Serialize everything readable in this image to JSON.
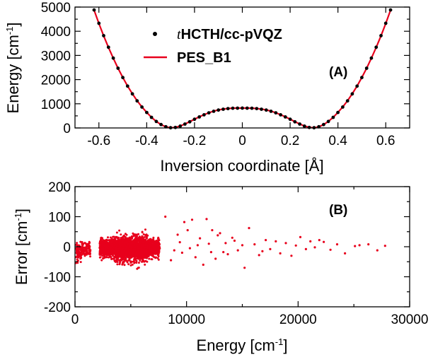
{
  "chart_data": [
    {
      "panel": "A",
      "type": "line",
      "panel_label": "(A)",
      "xlabel": "Inversion coordinate [Å]",
      "ylabel_main": "Energy [cm",
      "ylabel_sup": "-1",
      "ylabel_tail": "]",
      "xlim": [
        -0.7,
        0.7
      ],
      "ylim": [
        0,
        5000
      ],
      "xticks": [
        -0.6,
        -0.4,
        -0.2,
        0,
        0.2,
        0.4,
        0.6
      ],
      "xtick_labels": [
        "-0.6",
        "-0.4",
        "-0.2",
        "0",
        "0.2",
        "0.4",
        "0.6"
      ],
      "yticks": [
        0,
        500,
        1000,
        1500,
        2000,
        2500,
        3000,
        3500,
        4000,
        4500,
        5000
      ],
      "ytick_labels": [
        "0",
        "",
        "1000",
        "",
        "2000",
        "",
        "3000",
        "",
        "4000",
        "",
        "5000"
      ],
      "legend": [
        {
          "label_italic": "t",
          "label_rest": "HCTH/cc-pVQZ",
          "marker": "dot",
          "color": "#000000"
        },
        {
          "label_italic": "",
          "label_rest": "PES_B1",
          "marker": "line",
          "color": "#e8001c"
        }
      ],
      "series": [
        {
          "name": "tHCTH/cc-pVQZ",
          "style": "points",
          "color": "#000000",
          "x": [
            -0.62,
            -0.6,
            -0.58,
            -0.56,
            -0.54,
            -0.52,
            -0.5,
            -0.48,
            -0.46,
            -0.44,
            -0.42,
            -0.4,
            -0.38,
            -0.36,
            -0.34,
            -0.32,
            -0.3,
            -0.28,
            -0.26,
            -0.24,
            -0.22,
            -0.2,
            -0.18,
            -0.16,
            -0.14,
            -0.12,
            -0.1,
            -0.08,
            -0.06,
            -0.04,
            -0.02,
            0,
            0.02,
            0.04,
            0.06,
            0.08,
            0.1,
            0.12,
            0.14,
            0.16,
            0.18,
            0.2,
            0.22,
            0.24,
            0.26,
            0.28,
            0.3,
            0.32,
            0.34,
            0.36,
            0.38,
            0.4,
            0.42,
            0.44,
            0.46,
            0.48,
            0.5,
            0.52,
            0.54,
            0.56,
            0.58,
            0.6,
            0.62
          ],
          "y": [
            4880,
            4330,
            3820,
            3340,
            2890,
            2470,
            2085,
            1730,
            1410,
            1120,
            865,
            640,
            440,
            270,
            140,
            50,
            10,
            20,
            75,
            160,
            255,
            360,
            455,
            545,
            625,
            690,
            740,
            775,
            800,
            815,
            820,
            822,
            820,
            815,
            800,
            775,
            740,
            690,
            625,
            545,
            455,
            360,
            255,
            160,
            75,
            20,
            10,
            50,
            140,
            270,
            440,
            640,
            865,
            1120,
            1410,
            1730,
            2085,
            2470,
            2890,
            3340,
            3820,
            4330,
            4880
          ]
        },
        {
          "name": "PES_B1",
          "style": "line",
          "color": "#e8001c",
          "x": [
            -0.62,
            -0.6,
            -0.58,
            -0.56,
            -0.54,
            -0.52,
            -0.5,
            -0.48,
            -0.46,
            -0.44,
            -0.42,
            -0.4,
            -0.38,
            -0.36,
            -0.34,
            -0.32,
            -0.3,
            -0.28,
            -0.26,
            -0.24,
            -0.22,
            -0.2,
            -0.18,
            -0.16,
            -0.14,
            -0.12,
            -0.1,
            -0.08,
            -0.06,
            -0.04,
            -0.02,
            0,
            0.02,
            0.04,
            0.06,
            0.08,
            0.1,
            0.12,
            0.14,
            0.16,
            0.18,
            0.2,
            0.22,
            0.24,
            0.26,
            0.28,
            0.3,
            0.32,
            0.34,
            0.36,
            0.38,
            0.4,
            0.42,
            0.44,
            0.46,
            0.48,
            0.5,
            0.52,
            0.54,
            0.56,
            0.58,
            0.6,
            0.62
          ],
          "y": [
            4870,
            4320,
            3810,
            3330,
            2885,
            2470,
            2088,
            1735,
            1415,
            1125,
            868,
            642,
            440,
            268,
            136,
            47,
            8,
            22,
            78,
            164,
            260,
            364,
            460,
            550,
            630,
            695,
            745,
            780,
            805,
            818,
            822,
            824,
            822,
            818,
            805,
            780,
            745,
            695,
            630,
            550,
            460,
            364,
            260,
            164,
            78,
            22,
            8,
            47,
            136,
            268,
            440,
            642,
            868,
            1125,
            1415,
            1735,
            2088,
            2470,
            2885,
            3330,
            3810,
            4320,
            4870
          ]
        }
      ]
    },
    {
      "panel": "B",
      "type": "scatter",
      "panel_label": "(B)",
      "xlabel_main": "Energy [cm",
      "xlabel_sup": "-1",
      "xlabel_tail": "]",
      "ylabel_main": "Error [cm",
      "ylabel_sup": "-1",
      "ylabel_tail": "]",
      "xlim": [
        0,
        30000
      ],
      "ylim": [
        -200,
        200
      ],
      "xticks": [
        0,
        5000,
        10000,
        15000,
        20000,
        25000,
        30000
      ],
      "xtick_labels": [
        "0",
        "",
        "10000",
        "",
        "20000",
        "",
        "30000"
      ],
      "yticks": [
        -200,
        -150,
        -100,
        -50,
        0,
        50,
        100,
        150,
        200
      ],
      "ytick_labels": [
        "-200",
        "",
        "-100",
        "",
        "0",
        "",
        "100",
        "",
        "200"
      ],
      "color": "#e8001c",
      "sparse_points": [
        [
          8100,
          100
        ],
        [
          9800,
          82
        ],
        [
          10500,
          90
        ],
        [
          11800,
          92
        ],
        [
          12300,
          55
        ],
        [
          12800,
          38
        ],
        [
          13300,
          -18
        ],
        [
          14100,
          30
        ],
        [
          14600,
          -12
        ],
        [
          15200,
          -70
        ],
        [
          15600,
          62
        ],
        [
          16100,
          8
        ],
        [
          16500,
          -28
        ],
        [
          17100,
          22
        ],
        [
          17500,
          -8
        ],
        [
          18000,
          18
        ],
        [
          18400,
          -22
        ],
        [
          18900,
          12
        ],
        [
          19400,
          -30
        ],
        [
          19800,
          4
        ],
        [
          20200,
          32
        ],
        [
          20700,
          -8
        ],
        [
          21100,
          18
        ],
        [
          21500,
          -2
        ],
        [
          21900,
          22
        ],
        [
          22300,
          16
        ],
        [
          22900,
          -10
        ],
        [
          23500,
          8
        ],
        [
          24200,
          -22
        ],
        [
          25100,
          2
        ],
        [
          25500,
          5
        ],
        [
          26300,
          8
        ],
        [
          27100,
          -12
        ],
        [
          27800,
          3
        ],
        [
          8600,
          -45
        ],
        [
          9200,
          40
        ],
        [
          9600,
          -20
        ],
        [
          10100,
          55
        ],
        [
          10800,
          -35
        ],
        [
          11200,
          28
        ],
        [
          11500,
          -60
        ],
        [
          12000,
          10
        ],
        [
          12600,
          -40
        ],
        [
          13000,
          45
        ],
        [
          13700,
          -25
        ],
        [
          14300,
          20
        ],
        [
          10300,
          -5
        ],
        [
          9400,
          15
        ],
        [
          8900,
          -12
        ],
        [
          11000,
          5
        ],
        [
          12200,
          -18
        ],
        [
          13500,
          12
        ],
        [
          15000,
          5
        ],
        [
          16800,
          -15
        ]
      ],
      "dense_clusters": [
        {
          "x_range": [
            100,
            1400
          ],
          "y_mean": -10,
          "y_spread": 25,
          "count": 140
        },
        {
          "x_range": [
            2200,
            7600
          ],
          "y_mean": -5,
          "y_spread": 30,
          "count": 1700
        },
        {
          "x_range": [
            3500,
            6500
          ],
          "y_mean": -8,
          "y_spread": 45,
          "count": 700
        }
      ]
    }
  ]
}
